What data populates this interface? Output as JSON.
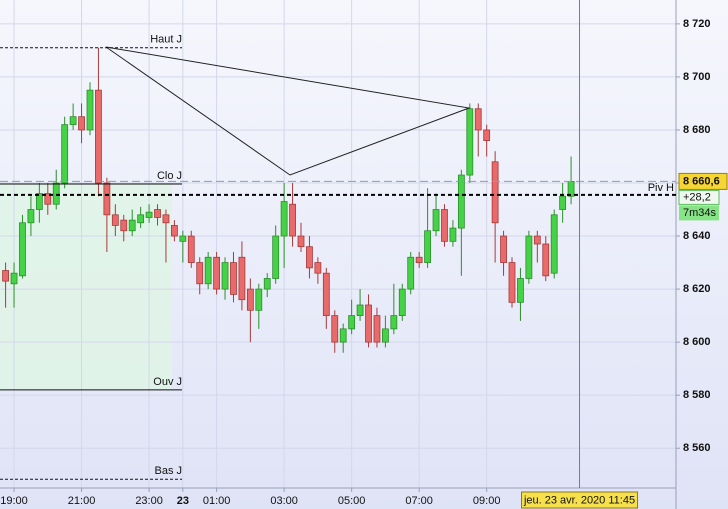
{
  "chart_data": {
    "type": "candlestick",
    "categories": [
      null,
      "19:00",
      null,
      null,
      null,
      null,
      null,
      null,
      null,
      "21:00",
      null,
      null,
      null,
      null,
      null,
      null,
      null,
      "23:00",
      null,
      null,
      null,
      "23",
      null,
      null,
      null,
      "01:00",
      null,
      null,
      null,
      null,
      null,
      null,
      null,
      "03:00",
      null,
      null,
      null,
      null,
      null,
      null,
      null,
      "05:00",
      null,
      null,
      null,
      null,
      null,
      null,
      null,
      "07:00",
      null,
      null,
      null,
      null,
      null,
      null,
      null,
      "09:00",
      null,
      null,
      null,
      null,
      null,
      null,
      null,
      null,
      null,
      null
    ],
    "open": [
      8627,
      8622,
      8625,
      8645,
      8650,
      8656,
      8652,
      8660,
      8682,
      8685,
      8680,
      8695,
      8660,
      8648,
      8646,
      8642,
      8645,
      8647,
      8650,
      8648,
      8644,
      8638,
      8640,
      8630,
      8622,
      8632,
      8620,
      8630,
      8632,
      8620,
      8612,
      8620,
      8624,
      8640,
      8652,
      8640,
      8636,
      8630,
      8626,
      8610,
      8600,
      8605,
      8610,
      8614,
      8610,
      8600,
      8605,
      8610,
      8620,
      8632,
      8630,
      8642,
      8650,
      8638,
      8643,
      8663,
      8688,
      8680,
      8668,
      8640,
      8630,
      8615,
      8624,
      8640,
      8637,
      8626,
      8650,
      8655
    ],
    "high": [
      8630,
      8630,
      8648,
      8655,
      8660,
      8660,
      8665,
      8685,
      8690,
      8690,
      8698,
      8711,
      8662,
      8652,
      8648,
      8650,
      8651,
      8652,
      8652,
      8650,
      8646,
      8642,
      8642,
      8632,
      8634,
      8634,
      8632,
      8634,
      8638,
      8624,
      8622,
      8626,
      8644,
      8660,
      8660,
      8645,
      8640,
      8632,
      8628,
      8612,
      8607,
      8616,
      8620,
      8618,
      8613,
      8610,
      8622,
      8622,
      8634,
      8634,
      8658,
      8656,
      8652,
      8646,
      8665,
      8690,
      8690,
      8682,
      8672,
      8642,
      8632,
      8628,
      8642,
      8642,
      8640,
      8650,
      8660,
      8670
    ],
    "low": [
      8613,
      8613,
      8624,
      8640,
      8645,
      8648,
      8650,
      8658,
      8680,
      8675,
      8678,
      8655,
      8634,
      8640,
      8638,
      8640,
      8643,
      8645,
      8644,
      8630,
      8638,
      8630,
      8628,
      8618,
      8620,
      8618,
      8616,
      8615,
      8612,
      8600,
      8605,
      8617,
      8622,
      8628,
      8636,
      8634,
      8624,
      8622,
      8605,
      8596,
      8596,
      8603,
      8608,
      8598,
      8598,
      8598,
      8603,
      8608,
      8618,
      8628,
      8628,
      8640,
      8636,
      8636,
      8625,
      8660,
      8670,
      8670,
      8630,
      8625,
      8613,
      8608,
      8622,
      8630,
      8623,
      8624,
      8645,
      8652
    ],
    "close": [
      8623,
      8626,
      8645,
      8650,
      8656,
      8652,
      8660,
      8682,
      8685,
      8680,
      8695,
      8660,
      8648,
      8644,
      8642,
      8646,
      8648,
      8649,
      8647,
      8645,
      8640,
      8640,
      8630,
      8622,
      8632,
      8620,
      8630,
      8618,
      8616,
      8612,
      8620,
      8624,
      8640,
      8653,
      8640,
      8636,
      8628,
      8626,
      8610,
      8600,
      8605,
      8610,
      8614,
      8600,
      8600,
      8605,
      8610,
      8620,
      8632,
      8630,
      8642,
      8650,
      8638,
      8643,
      8663,
      8688,
      8680,
      8676,
      8645,
      8630,
      8615,
      8624,
      8640,
      8637,
      8625,
      8648,
      8655,
      8660.6
    ],
    "up_color": "#46d246",
    "down_color": "#e86a6a",
    "ylim": [
      8545,
      8729
    ],
    "yticks": [
      {
        "value": 8560,
        "label": "8 560"
      },
      {
        "value": 8580,
        "label": "8 580"
      },
      {
        "value": 8600,
        "label": "8 600"
      },
      {
        "value": 8620,
        "label": "8 620"
      },
      {
        "value": 8640,
        "label": "8 640"
      },
      {
        "value": 8660,
        "label": "8 660"
      },
      {
        "value": 8680,
        "label": "8 680"
      },
      {
        "value": 8700,
        "label": "8 700"
      },
      {
        "value": 8720,
        "label": "8 720"
      }
    ],
    "grid": true,
    "levels": [
      {
        "label": "Haut J",
        "value": 8711
      },
      {
        "label": "Clo J",
        "value": 8659.6
      },
      {
        "label": "Ouv J",
        "value": 8582
      },
      {
        "label": "Bas J",
        "value": 8548.3
      }
    ],
    "pivot": {
      "label": "Piv H",
      "value": 8655.5
    },
    "last": {
      "value": 8660.6,
      "label": "8 660,6"
    },
    "change": {
      "value": 28.2,
      "label": "+28,2"
    },
    "timer": "7m34s",
    "crosshair": {
      "index": 68,
      "label": "jeu. 23 avr. 2020 11:45"
    }
  }
}
